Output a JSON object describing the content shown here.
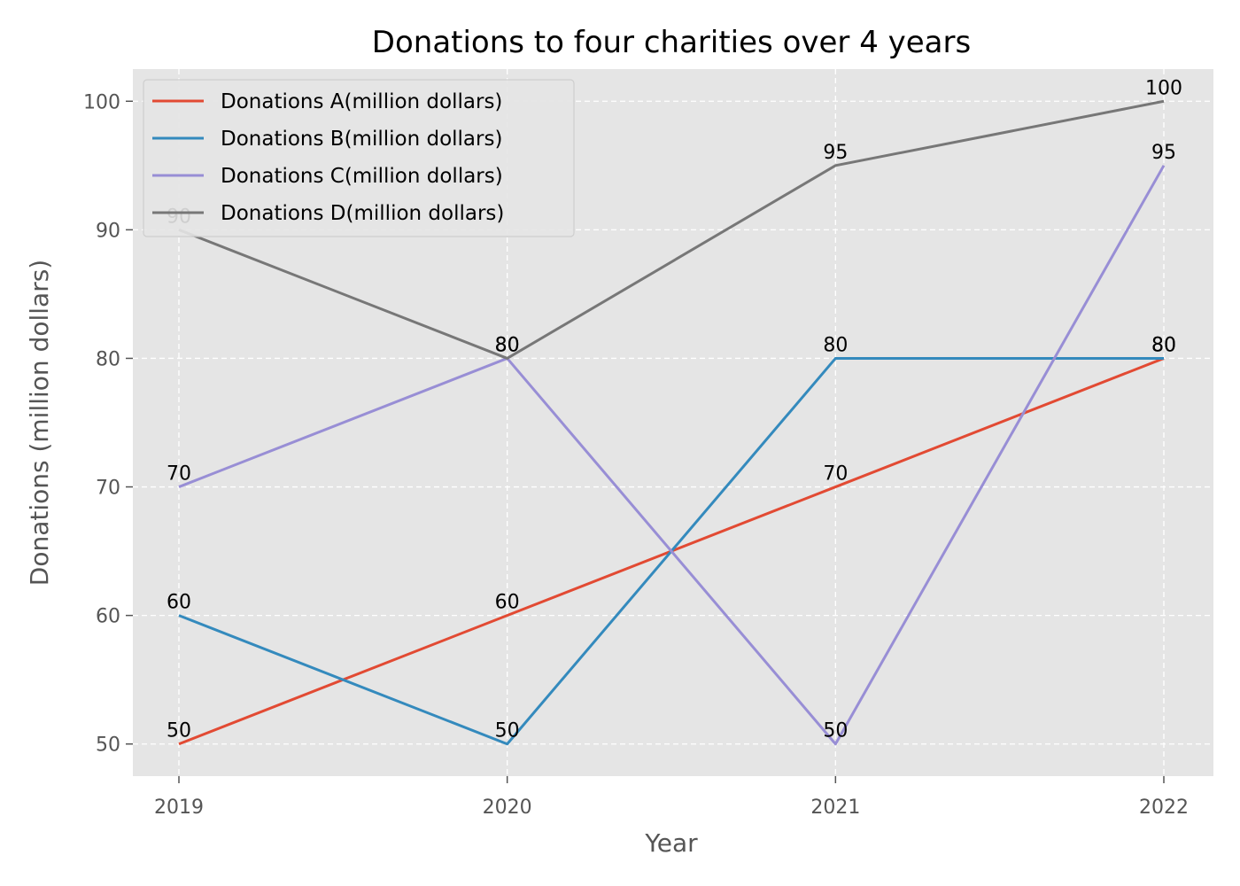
{
  "chart_data": {
    "type": "line",
    "title": "Donations to four charities over 4 years",
    "xlabel": "Year",
    "ylabel": "Donations (million dollars)",
    "categories": [
      "2019",
      "2020",
      "2021",
      "2022"
    ],
    "yticks": [
      50,
      60,
      70,
      80,
      90,
      100
    ],
    "ylim": [
      47.5,
      102.5
    ],
    "grid": true,
    "legend_position": "top-left",
    "series": [
      {
        "name": "Donations A(million dollars)",
        "color": "#e24a33",
        "values": [
          50,
          60,
          70,
          80
        ]
      },
      {
        "name": "Donations B(million dollars)",
        "color": "#348abd",
        "values": [
          60,
          50,
          80,
          80
        ]
      },
      {
        "name": "Donations C(million dollars)",
        "color": "#988ed5",
        "values": [
          70,
          80,
          50,
          95
        ]
      },
      {
        "name": "Donations D(million dollars)",
        "color": "#777777",
        "values": [
          90,
          80,
          95,
          100
        ]
      }
    ]
  }
}
